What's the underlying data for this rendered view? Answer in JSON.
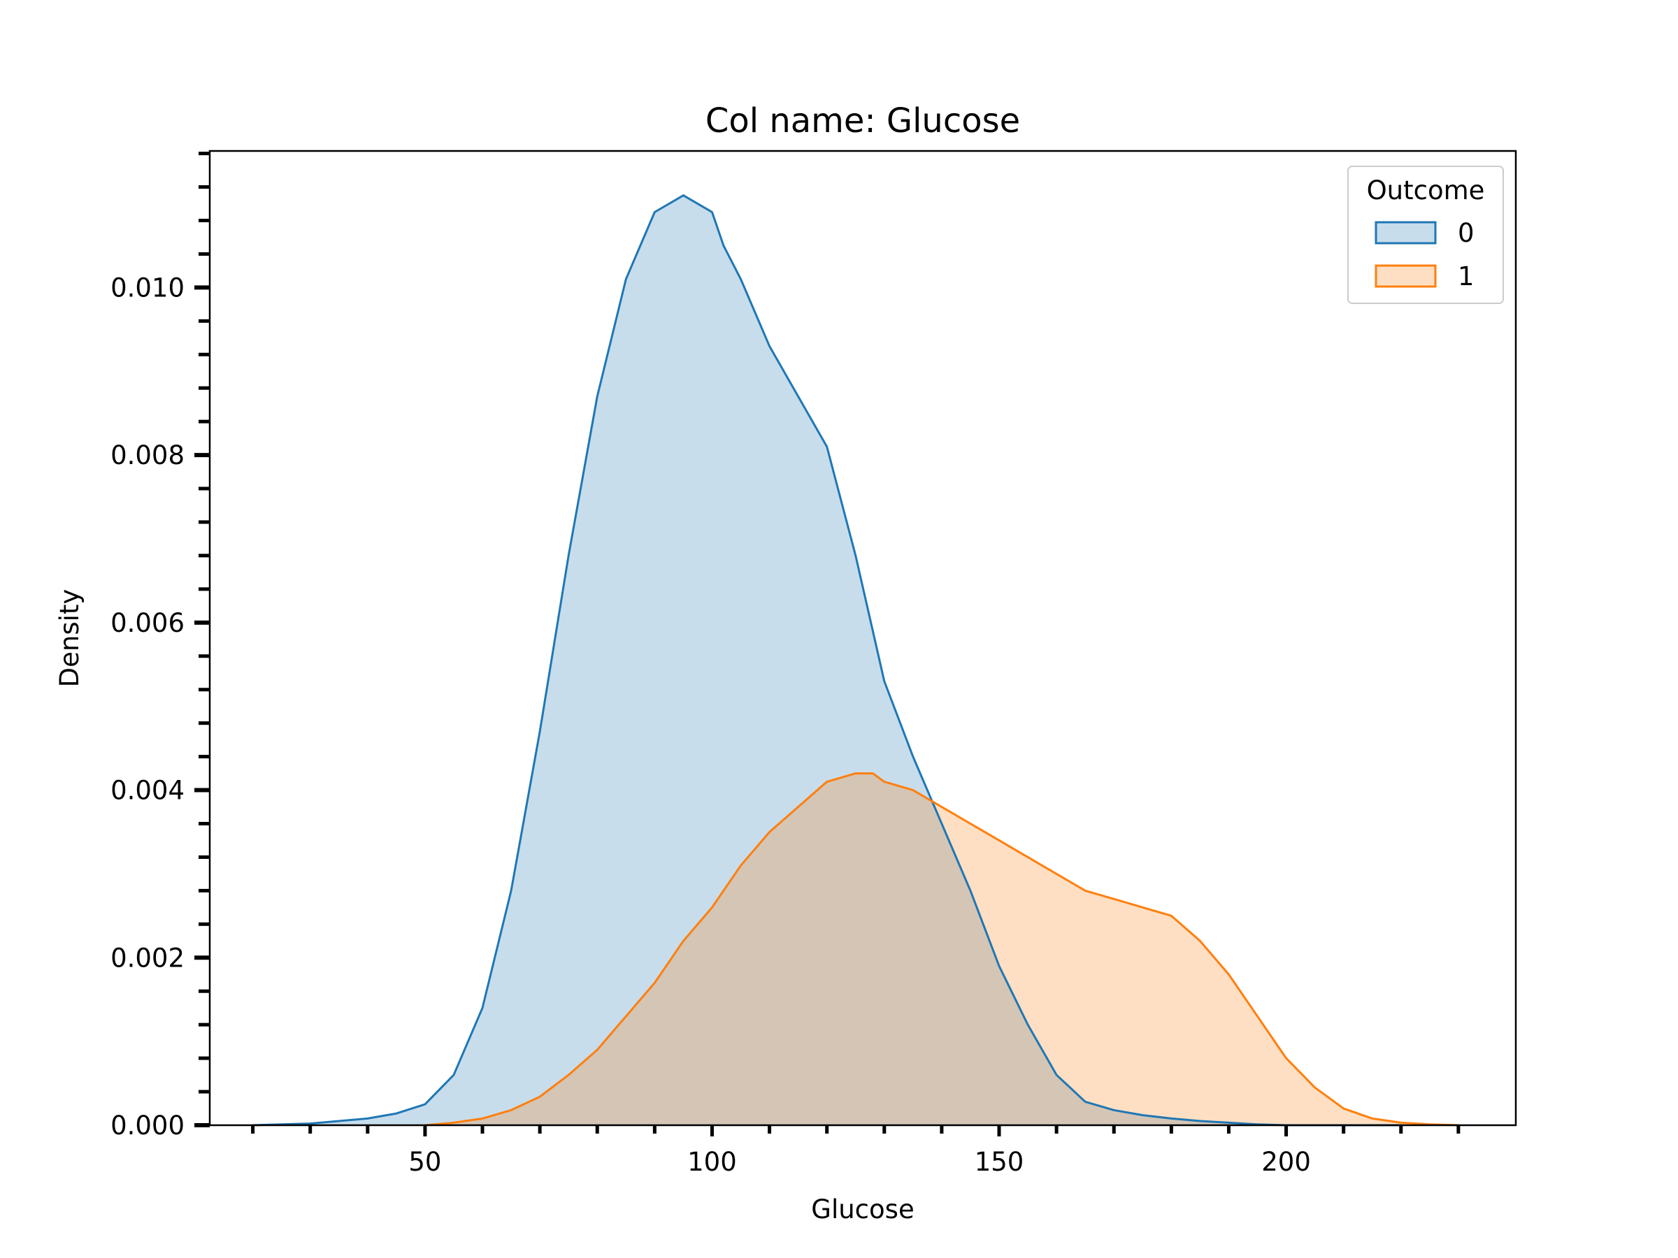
{
  "chart_data": {
    "type": "area",
    "title": "Col name: Glucose",
    "xlabel": "Glucose",
    "ylabel": "Density",
    "xlim": [
      12.5,
      240
    ],
    "ylim": [
      0,
      0.01163
    ],
    "grid": false,
    "legend": {
      "title": "Outcome",
      "placement": "top-right",
      "entries": [
        "0",
        "1"
      ]
    },
    "x_major_ticks": [
      50,
      100,
      150,
      200
    ],
    "x_minor_ticks": [
      20,
      30,
      40,
      60,
      70,
      80,
      90,
      110,
      120,
      130,
      140,
      160,
      170,
      180,
      190,
      210,
      220,
      230
    ],
    "y_major_ticks": [
      0.0,
      0.002,
      0.004,
      0.006,
      0.008,
      0.01
    ],
    "y_tick_labels": [
      "0.000",
      "0.002",
      "0.004",
      "0.006",
      "0.008",
      "0.010"
    ],
    "y_minor_step": 0.0004,
    "series": [
      {
        "name": "0",
        "line_color": "#1f77b4",
        "fill_color": "#1f77b4",
        "fill_opacity": 0.25,
        "x": [
          20,
          30,
          40,
          45,
          50,
          55,
          60,
          65,
          70,
          75,
          80,
          85,
          90,
          95,
          100,
          102,
          105,
          110,
          115,
          120,
          125,
          130,
          135,
          140,
          145,
          150,
          155,
          160,
          165,
          170,
          175,
          180,
          185,
          190,
          195,
          200,
          205,
          210,
          215,
          220
        ],
        "y": [
          0.0,
          2e-05,
          8e-05,
          0.00014,
          0.00025,
          0.0006,
          0.0014,
          0.0028,
          0.0047,
          0.0068,
          0.0087,
          0.0101,
          0.0109,
          0.0111,
          0.0109,
          0.0105,
          0.0101,
          0.0093,
          0.0087,
          0.0081,
          0.0068,
          0.0053,
          0.0044,
          0.0036,
          0.0028,
          0.0019,
          0.0012,
          0.0006,
          0.00028,
          0.00018,
          0.00012,
          8e-05,
          5e-05,
          3e-05,
          1e-05,
          0.0,
          0.0,
          0.0,
          0.0,
          0.0
        ]
      },
      {
        "name": "1",
        "line_color": "#ff7f0e",
        "fill_color": "#ff7f0e",
        "fill_opacity": 0.25,
        "x": [
          50,
          55,
          60,
          65,
          70,
          75,
          80,
          85,
          90,
          95,
          100,
          105,
          110,
          115,
          120,
          125,
          128,
          130,
          135,
          140,
          145,
          150,
          155,
          160,
          165,
          170,
          175,
          180,
          185,
          190,
          195,
          200,
          205,
          210,
          215,
          220,
          225,
          230
        ],
        "y": [
          0.0,
          3e-05,
          8e-05,
          0.00018,
          0.00034,
          0.0006,
          0.0009,
          0.0013,
          0.0017,
          0.0022,
          0.0026,
          0.0031,
          0.0035,
          0.0038,
          0.0041,
          0.0042,
          0.0042,
          0.0041,
          0.004,
          0.0038,
          0.0036,
          0.0034,
          0.0032,
          0.003,
          0.0028,
          0.0027,
          0.0026,
          0.0025,
          0.0022,
          0.0018,
          0.0013,
          0.0008,
          0.00045,
          0.0002,
          8e-05,
          3e-05,
          1e-05,
          0.0
        ]
      }
    ]
  }
}
